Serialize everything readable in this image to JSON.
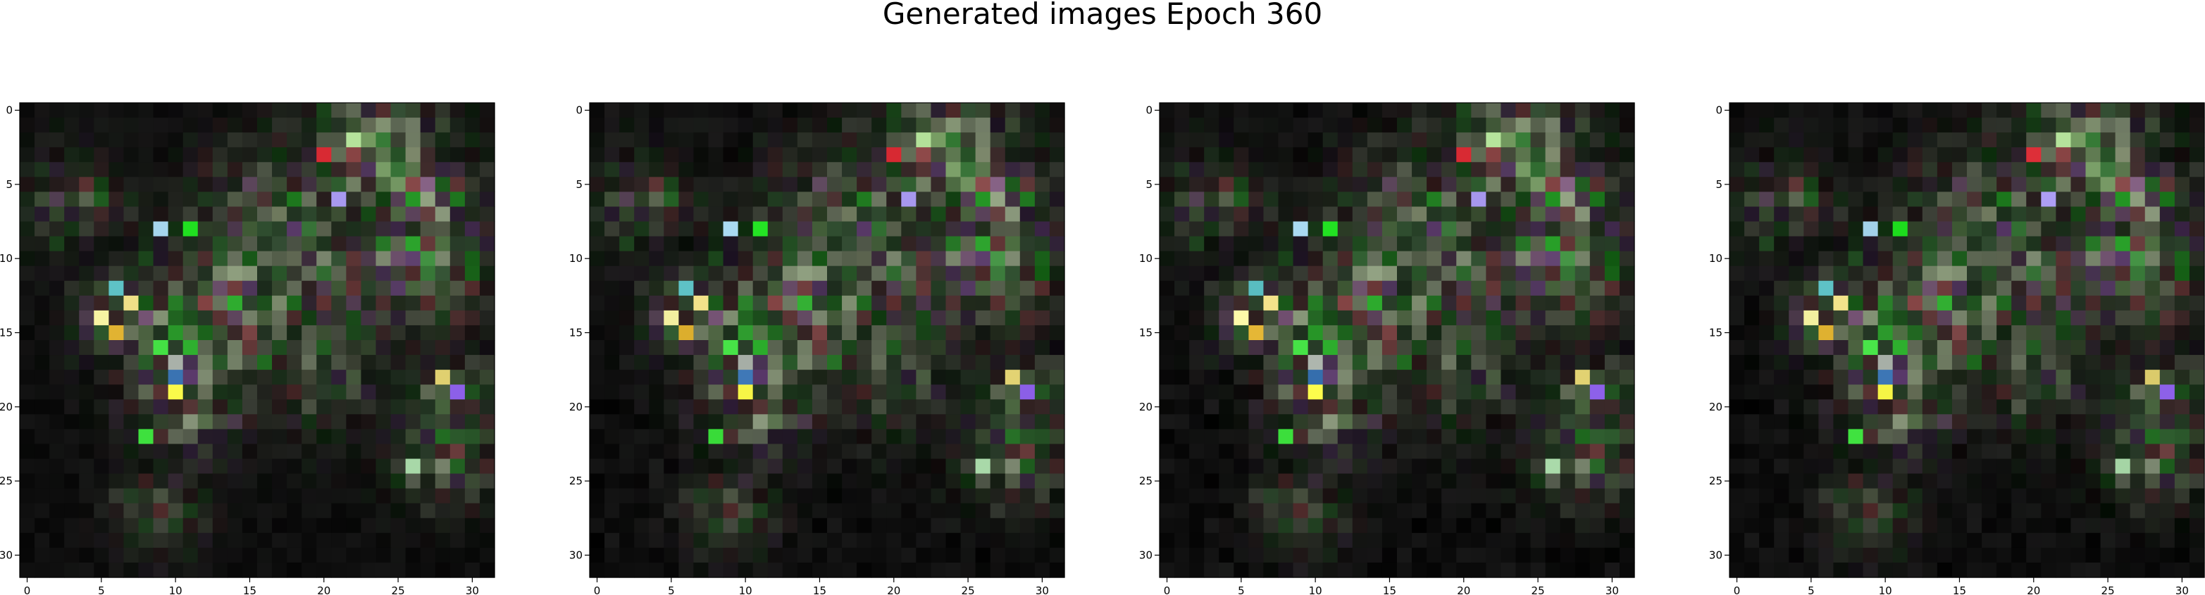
{
  "title": "Generated images Epoch 360",
  "chart_data": {
    "type": "heatmap",
    "title": "Generated images Epoch 360",
    "panel_count": 4,
    "image_resolution": [
      32,
      32
    ],
    "xlim": [
      -0.5,
      31.5
    ],
    "ylim": [
      31.5,
      -0.5
    ],
    "y_inverted": true,
    "grid": false,
    "xticks": [
      0,
      5,
      10,
      15,
      20,
      25,
      30
    ],
    "yticks": [
      0,
      5,
      10,
      15,
      20,
      25,
      30
    ],
    "xtick_labels": [
      "0",
      "5",
      "10",
      "15",
      "20",
      "25",
      "30"
    ],
    "ytick_labels": [
      "0",
      "5",
      "10",
      "15",
      "20",
      "25",
      "30"
    ],
    "background_color": "#050505",
    "bright_clusters": [
      {
        "row": 2,
        "col": 22,
        "color": "#b5e39b"
      },
      {
        "row": 3,
        "col": 20,
        "color": "#d82a33"
      },
      {
        "row": 6,
        "col": 21,
        "color": "#a899f0"
      },
      {
        "row": 8,
        "col": 9,
        "color": "#a6d6ee"
      },
      {
        "row": 8,
        "col": 11,
        "color": "#20e020"
      },
      {
        "row": 12,
        "col": 6,
        "color": "#5ec2c6"
      },
      {
        "row": 13,
        "col": 7,
        "color": "#f0e088"
      },
      {
        "row": 14,
        "col": 5,
        "color": "#f7f4a3"
      },
      {
        "row": 15,
        "col": 6,
        "color": "#e1b332"
      },
      {
        "row": 16,
        "col": 9,
        "color": "#44e044"
      },
      {
        "row": 17,
        "col": 10,
        "color": "#a9b1a9"
      },
      {
        "row": 18,
        "col": 10,
        "color": "#3a73b2"
      },
      {
        "row": 19,
        "col": 10,
        "color": "#fafa4a"
      },
      {
        "row": 18,
        "col": 28,
        "color": "#e0d070"
      },
      {
        "row": 19,
        "col": 29,
        "color": "#8c60e8"
      },
      {
        "row": 22,
        "col": 8,
        "color": "#3ee03e"
      },
      {
        "row": 24,
        "col": 26,
        "color": "#a8d8a8"
      }
    ]
  }
}
